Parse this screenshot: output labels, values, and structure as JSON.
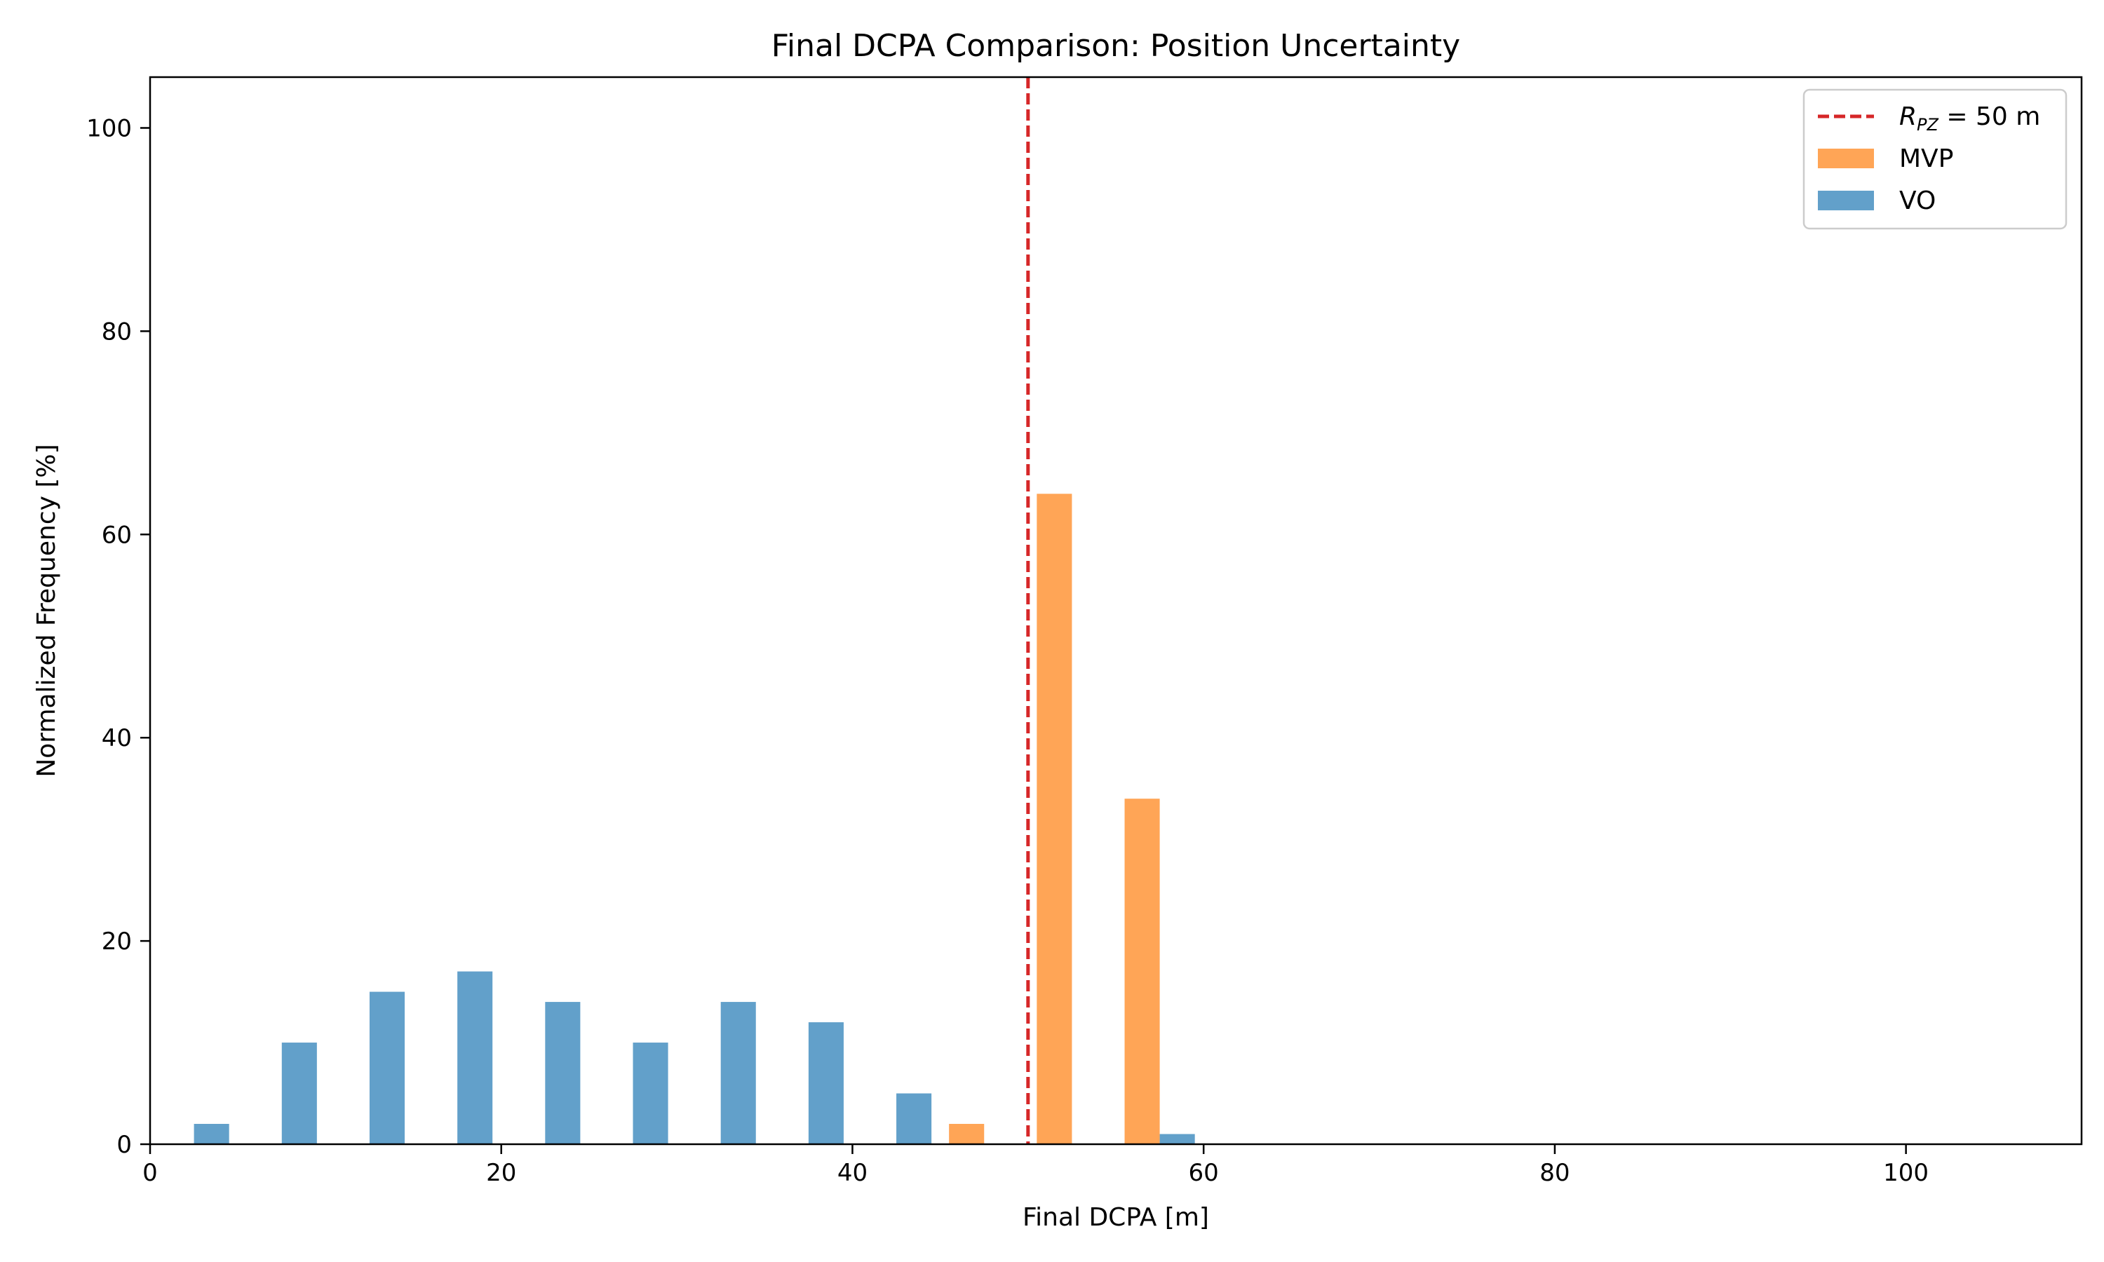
{
  "chart_data": {
    "type": "bar",
    "title": "Final DCPA Comparison: Position Uncertainty",
    "xlabel": "Final DCPA [m]",
    "ylabel": "Normalized Frequency [%]",
    "xlim": [
      0,
      110
    ],
    "ylim": [
      0,
      105
    ],
    "xticks": [
      "0",
      "20",
      "40",
      "60",
      "80",
      "100"
    ],
    "yticks": [
      "0",
      "20",
      "40",
      "60",
      "80",
      "100"
    ],
    "grid": false,
    "legend_position": "top-right",
    "reference_line": {
      "x": 50,
      "label_main": "R",
      "label_sub": "PZ",
      "label_rest": " = 50 m",
      "color": "#d62728",
      "style": "dashed"
    },
    "series": [
      {
        "name": "MVP",
        "color": "#ff7f0e",
        "bins": [
          {
            "x_start": 45.5,
            "x_end": 47.5,
            "value": 2
          },
          {
            "x_start": 50.5,
            "x_end": 52.5,
            "value": 64
          },
          {
            "x_start": 55.5,
            "x_end": 57.5,
            "value": 34
          }
        ]
      },
      {
        "name": "VO",
        "color": "#1f77b4",
        "bins": [
          {
            "x_start": 2.5,
            "x_end": 4.5,
            "value": 2
          },
          {
            "x_start": 7.5,
            "x_end": 9.5,
            "value": 10
          },
          {
            "x_start": 12.5,
            "x_end": 14.5,
            "value": 15
          },
          {
            "x_start": 17.5,
            "x_end": 19.5,
            "value": 17
          },
          {
            "x_start": 22.5,
            "x_end": 24.5,
            "value": 14
          },
          {
            "x_start": 27.5,
            "x_end": 29.5,
            "value": 10
          },
          {
            "x_start": 32.5,
            "x_end": 34.5,
            "value": 14
          },
          {
            "x_start": 37.5,
            "x_end": 39.5,
            "value": 12
          },
          {
            "x_start": 42.5,
            "x_end": 44.5,
            "value": 5
          },
          {
            "x_start": 57.5,
            "x_end": 59.5,
            "value": 1
          }
        ]
      }
    ]
  }
}
